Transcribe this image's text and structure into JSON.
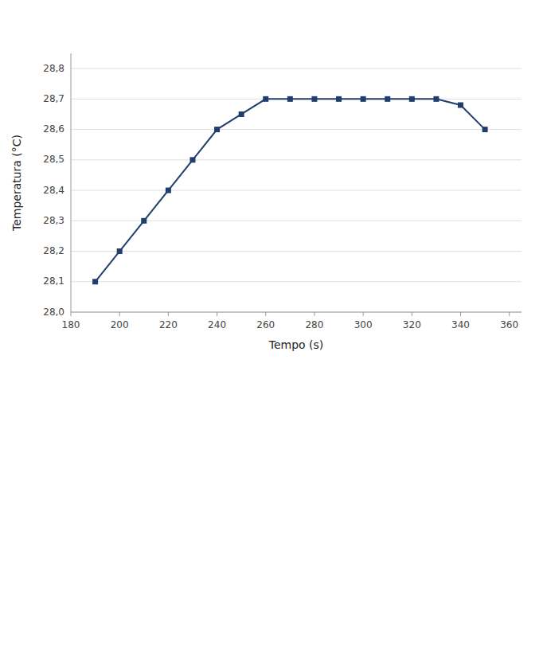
{
  "chart_data": {
    "type": "line",
    "x": [
      190,
      200,
      210,
      220,
      230,
      240,
      250,
      260,
      270,
      280,
      290,
      300,
      310,
      320,
      330,
      340,
      350
    ],
    "values": [
      28.1,
      28.2,
      28.3,
      28.4,
      28.5,
      28.6,
      28.65,
      28.7,
      28.7,
      28.7,
      28.7,
      28.7,
      28.7,
      28.7,
      28.7,
      28.68,
      28.6
    ],
    "color": "#1F3E6E",
    "marker": "square",
    "xlabel": "Tempo (s)",
    "ylabel": "Temperatura (°C)",
    "xlim": [
      180,
      365
    ],
    "ylim": [
      28.0,
      28.85
    ],
    "xticks": [
      180,
      200,
      220,
      240,
      260,
      280,
      300,
      320,
      340,
      360
    ],
    "yticks": [
      {
        "value": 28.0,
        "label": "28,0"
      },
      {
        "value": 28.1,
        "label": "28,1"
      },
      {
        "value": 28.2,
        "label": "28,2"
      },
      {
        "value": 28.3,
        "label": "28,3"
      },
      {
        "value": 28.4,
        "label": "28,4"
      },
      {
        "value": 28.5,
        "label": "28,5"
      },
      {
        "value": 28.6,
        "label": "28,6"
      },
      {
        "value": 28.7,
        "label": "28,7"
      },
      {
        "value": 28.8,
        "label": "28,8"
      }
    ],
    "grid": true
  }
}
